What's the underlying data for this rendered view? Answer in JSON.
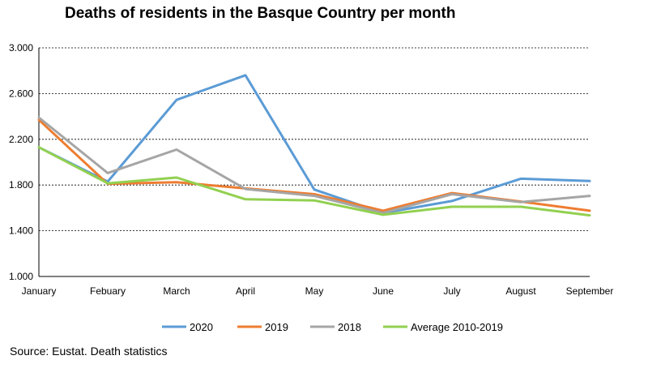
{
  "chart_data": {
    "type": "line",
    "title": "Deaths of residents in the Basque Country per month",
    "source": "Source: Eustat. Death statistics",
    "x": [
      "January",
      "Febuary",
      "March",
      "April",
      "May",
      "June",
      "July",
      "August",
      "September"
    ],
    "y_ticks": [
      "1.000",
      "1.400",
      "1.800",
      "2.200",
      "2.600",
      "3.000"
    ],
    "y_tick_values": [
      1000,
      1400,
      1800,
      2200,
      2600,
      3000
    ],
    "ylim": [
      1000,
      3000
    ],
    "grid": "horizontal dashed",
    "legend": "bottom",
    "series": [
      {
        "name": "2020",
        "color": "#5b9bd5",
        "values": [
          2130,
          1830,
          2545,
          2760,
          1760,
          1555,
          1660,
          1855,
          1835
        ]
      },
      {
        "name": "2019",
        "color": "#ed7d31",
        "values": [
          2370,
          1810,
          1825,
          1770,
          1720,
          1575,
          1730,
          1655,
          1575
        ]
      },
      {
        "name": "2018",
        "color": "#a5a5a5",
        "values": [
          2390,
          1905,
          2110,
          1765,
          1705,
          1555,
          1720,
          1650,
          1705
        ]
      },
      {
        "name": "Average 2010-2019",
        "color": "#92d050",
        "values": [
          2130,
          1815,
          1865,
          1675,
          1665,
          1540,
          1610,
          1610,
          1535
        ]
      }
    ]
  }
}
